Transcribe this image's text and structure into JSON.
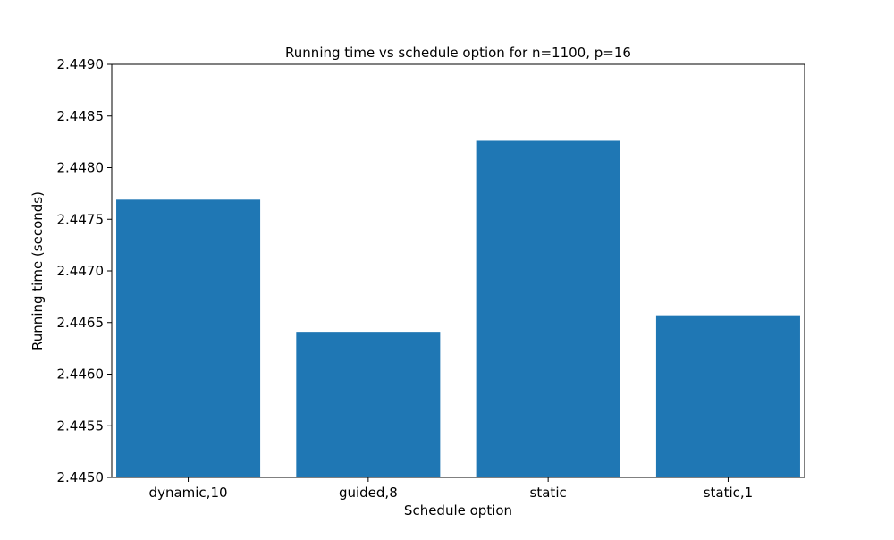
{
  "chart_data": {
    "type": "bar",
    "title": "Running time vs schedule option for n=1100, p=16",
    "xlabel": "Schedule option",
    "ylabel": "Running time (seconds)",
    "categories": [
      "dynamic,10",
      "guided,8",
      "static",
      "static,1"
    ],
    "values": [
      2.44769,
      2.44641,
      2.44826,
      2.44657
    ],
    "ylim": [
      2.445,
      2.449
    ],
    "yticks": [
      "2.4450",
      "2.4455",
      "2.4460",
      "2.4465",
      "2.4470",
      "2.4475",
      "2.4480",
      "2.4485",
      "2.4490"
    ],
    "bar_color": "#1f77b4",
    "grid": false,
    "legend": "none"
  }
}
